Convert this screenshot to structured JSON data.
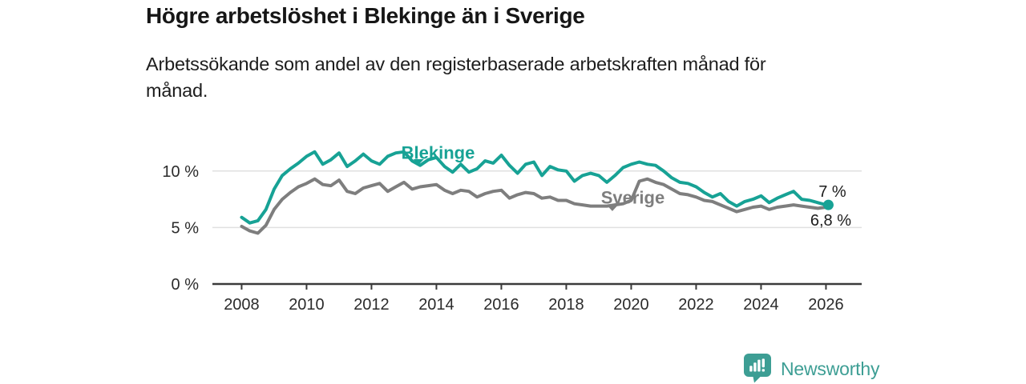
{
  "header": {
    "title": "Högre arbetslöshet i Blekinge än i Sverige",
    "subtitle": "Arbetssökande som andel av den registerbaserade arbetskraften månad för\nmånad."
  },
  "footer": {
    "brand": "Newsworthy",
    "logo_color": "#3d9e94"
  },
  "chart_data": {
    "type": "line",
    "title": "Högre arbetslöshet i Blekinge än i Sverige",
    "subtitle": "Arbetssökande som andel av den registerbaserade arbetskraften månad för månad.",
    "unit": "%",
    "x_start": 2008.0,
    "x_step": 0.25,
    "xlim": [
      2007.1,
      2027.1
    ],
    "ylim": [
      0,
      13.1
    ],
    "xticks": [
      2008,
      2010,
      2012,
      2014,
      2016,
      2018,
      2020,
      2022,
      2024,
      2026
    ],
    "yticks": [
      {
        "value": 0,
        "label": "0 %"
      },
      {
        "value": 5,
        "label": "5 %"
      },
      {
        "value": 10,
        "label": "10 %"
      }
    ],
    "grid": "horizontal",
    "legend": "inline-labels",
    "colors": {
      "axis": "#3a3a3a",
      "axis_text": "#2b2b2b",
      "grid": "#e0e0e0",
      "value_text": "#1c1c1c"
    },
    "series": [
      {
        "id": "sverige",
        "name": "Sverige",
        "color": "#7e7e7e",
        "label": {
          "x": 2020.05,
          "y": 7.7,
          "caret_x": 2019.42,
          "caret_y": 6.45
        },
        "end_label": {
          "text": "6,8 %",
          "dx": 6,
          "dy": 23
        },
        "end_dot": false,
        "final_value": 6.8,
        "values": [
          5.1,
          4.7,
          4.5,
          5.2,
          6.6,
          7.5,
          8.1,
          8.6,
          8.9,
          9.3,
          8.8,
          8.7,
          9.2,
          8.2,
          8.0,
          8.5,
          8.7,
          8.9,
          8.2,
          8.6,
          9.0,
          8.4,
          8.6,
          8.7,
          8.8,
          8.3,
          8.0,
          8.3,
          8.2,
          7.7,
          8.0,
          8.2,
          8.3,
          7.6,
          7.9,
          8.1,
          8.0,
          7.6,
          7.7,
          7.4,
          7.4,
          7.1,
          7.0,
          6.9,
          6.9,
          6.9,
          7.0,
          7.1,
          7.4,
          9.1,
          9.3,
          9.0,
          8.8,
          8.4,
          8.0,
          7.9,
          7.7,
          7.4,
          7.3,
          7.0,
          6.7,
          6.4,
          6.6,
          6.8,
          6.9,
          6.6,
          6.8,
          6.9,
          7.0,
          6.9,
          6.8,
          6.7,
          6.8
        ]
      },
      {
        "id": "blekinge",
        "name": "Blekinge",
        "color": "#17a295",
        "label": {
          "x": 2014.05,
          "y": 11.65,
          "caret_x": 2013.45,
          "caret_y": 10.55
        },
        "end_label": {
          "text": "7 %",
          "dx": 8,
          "dy": -10
        },
        "end_dot": true,
        "final_value": 7.0,
        "values": [
          5.9,
          5.4,
          5.6,
          6.6,
          8.4,
          9.6,
          10.2,
          10.7,
          11.3,
          11.7,
          10.6,
          11.0,
          11.6,
          10.4,
          10.9,
          11.5,
          10.9,
          10.6,
          11.3,
          11.6,
          11.7,
          10.9,
          10.5,
          11.0,
          11.2,
          10.4,
          9.9,
          10.6,
          9.9,
          10.2,
          10.9,
          10.7,
          11.4,
          10.5,
          9.8,
          10.6,
          10.8,
          9.6,
          10.4,
          10.1,
          10.0,
          9.1,
          9.6,
          9.8,
          9.6,
          9.0,
          9.6,
          10.3,
          10.6,
          10.8,
          10.6,
          10.5,
          10.0,
          9.4,
          9.0,
          8.9,
          8.6,
          8.1,
          7.7,
          8.0,
          7.3,
          6.9,
          7.3,
          7.5,
          7.8,
          7.2,
          7.6,
          7.9,
          8.2,
          7.5,
          7.4,
          7.2,
          7.0
        ]
      }
    ]
  }
}
